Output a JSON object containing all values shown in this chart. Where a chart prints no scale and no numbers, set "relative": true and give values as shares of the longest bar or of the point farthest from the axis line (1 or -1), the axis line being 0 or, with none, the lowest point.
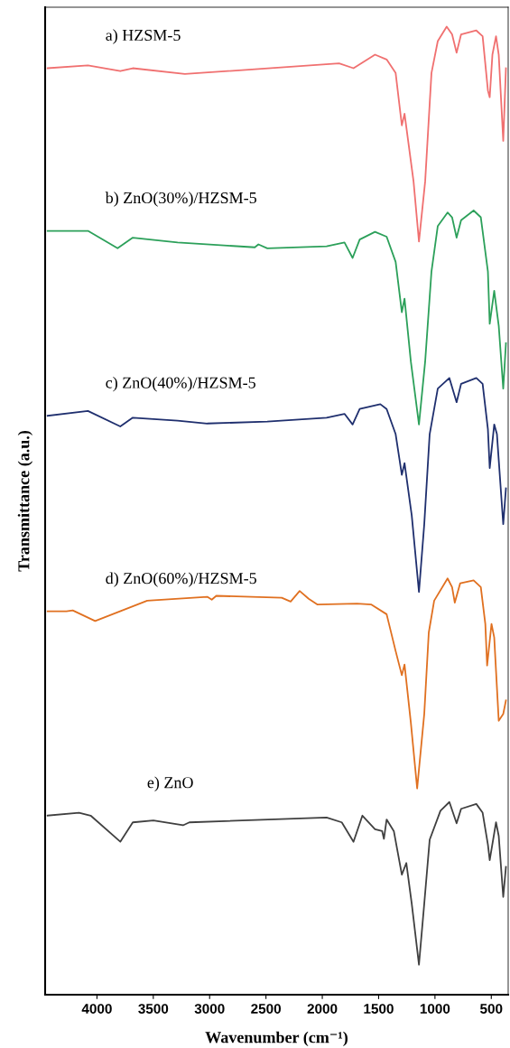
{
  "chart_data": {
    "type": "line",
    "relative": true,
    "xlabel": "Wavenumber (cm⁻¹)",
    "ylabel": "Transmittance (a.u.)",
    "xlim": [
      4460,
      350
    ],
    "xticks": [
      4000,
      3500,
      3000,
      2500,
      2000,
      1500,
      1000,
      500
    ],
    "grid": false,
    "legend": false,
    "annotations": [
      "a) HZSM-5",
      "b) ZnO(30%)/HZSM-5",
      "c) ZnO(40%)/HZSM-5",
      "d) ZnO(60%)/HZSM-5",
      "e) ZnO"
    ],
    "series": [
      {
        "color": "#f07070",
        "x": [
          4438,
          4080,
          3793,
          3682,
          3220,
          1851,
          1723,
          1532,
          1429,
          1349,
          1294,
          1270,
          1190,
          1142,
          1087,
          1031,
          975,
          896,
          848,
          808,
          768,
          633,
          577,
          530,
          514,
          490,
          458,
          434,
          394,
          370
        ],
        "values": [
          0.957,
          0.96,
          0.954,
          0.957,
          0.951,
          0.962,
          0.957,
          0.971,
          0.966,
          0.952,
          0.898,
          0.91,
          0.84,
          0.778,
          0.84,
          0.952,
          0.985,
          1,
          0.992,
          0.973,
          0.992,
          0.996,
          0.99,
          0.934,
          0.927,
          0.971,
          0.99,
          0.971,
          0.882,
          0.957
        ]
      },
      {
        "color": "#2ca05a",
        "x": [
          4438,
          4080,
          3817,
          3682,
          3284,
          2599,
          2567,
          2488,
          1962,
          1803,
          1731,
          1668,
          1532,
          1429,
          1349,
          1294,
          1270,
          1214,
          1142,
          1087,
          1031,
          975,
          888,
          848,
          808,
          768,
          657,
          593,
          530,
          514,
          474,
          434,
          394,
          370
        ],
        "values": [
          0.789,
          0.789,
          0.771,
          0.782,
          0.777,
          0.772,
          0.775,
          0.771,
          0.773,
          0.777,
          0.761,
          0.78,
          0.788,
          0.783,
          0.757,
          0.705,
          0.719,
          0.654,
          0.589,
          0.654,
          0.747,
          0.794,
          0.808,
          0.803,
          0.782,
          0.8,
          0.81,
          0.803,
          0.747,
          0.693,
          0.727,
          0.691,
          0.626,
          0.673
        ]
      },
      {
        "color": "#1f2f6e",
        "x": [
          4438,
          4080,
          3793,
          3682,
          3284,
          3021,
          2488,
          1962,
          1803,
          1731,
          1668,
          1485,
          1429,
          1349,
          1294,
          1270,
          1206,
          1142,
          1095,
          1047,
          975,
          872,
          808,
          768,
          633,
          577,
          530,
          514,
          474,
          450,
          394,
          370
        ],
        "values": [
          0.598,
          0.603,
          0.587,
          0.596,
          0.593,
          0.59,
          0.592,
          0.596,
          0.6,
          0.589,
          0.605,
          0.61,
          0.605,
          0.579,
          0.537,
          0.549,
          0.495,
          0.416,
          0.486,
          0.579,
          0.626,
          0.637,
          0.612,
          0.631,
          0.637,
          0.631,
          0.584,
          0.544,
          0.589,
          0.579,
          0.486,
          0.523
        ]
      },
      {
        "color": "#e07020",
        "x": [
          4438,
          4271,
          4215,
          4016,
          3554,
          3021,
          2981,
          2941,
          2360,
          2281,
          2201,
          2121,
          2042,
          1692,
          1564,
          1429,
          1349,
          1294,
          1270,
          1214,
          1158,
          1095,
          1055,
          1007,
          888,
          848,
          824,
          776,
          657,
          593,
          553,
          537,
          498,
          474,
          434,
          394,
          370
        ],
        "values": [
          0.396,
          0.396,
          0.397,
          0.386,
          0.407,
          0.411,
          0.408,
          0.412,
          0.41,
          0.406,
          0.417,
          0.409,
          0.403,
          0.404,
          0.403,
          0.393,
          0.355,
          0.33,
          0.341,
          0.281,
          0.213,
          0.29,
          0.374,
          0.407,
          0.43,
          0.421,
          0.405,
          0.425,
          0.428,
          0.421,
          0.383,
          0.34,
          0.383,
          0.369,
          0.283,
          0.29,
          0.304
        ]
      },
      {
        "color": "#404040",
        "x": [
          4438,
          4159,
          4056,
          3793,
          3682,
          3499,
          3236,
          3180,
          1962,
          1827,
          1723,
          1644,
          1532,
          1469,
          1453,
          1429,
          1365,
          1294,
          1254,
          1206,
          1142,
          1095,
          1047,
          951,
          872,
          808,
          768,
          633,
          577,
          530,
          514,
          458,
          434,
          394,
          370
        ],
        "values": [
          0.185,
          0.188,
          0.185,
          0.158,
          0.178,
          0.18,
          0.175,
          0.178,
          0.183,
          0.178,
          0.158,
          0.185,
          0.171,
          0.169,
          0.161,
          0.181,
          0.169,
          0.124,
          0.136,
          0.094,
          0.031,
          0.094,
          0.16,
          0.19,
          0.199,
          0.177,
          0.192,
          0.197,
          0.188,
          0.155,
          0.139,
          0.178,
          0.164,
          0.101,
          0.132
        ]
      }
    ]
  }
}
